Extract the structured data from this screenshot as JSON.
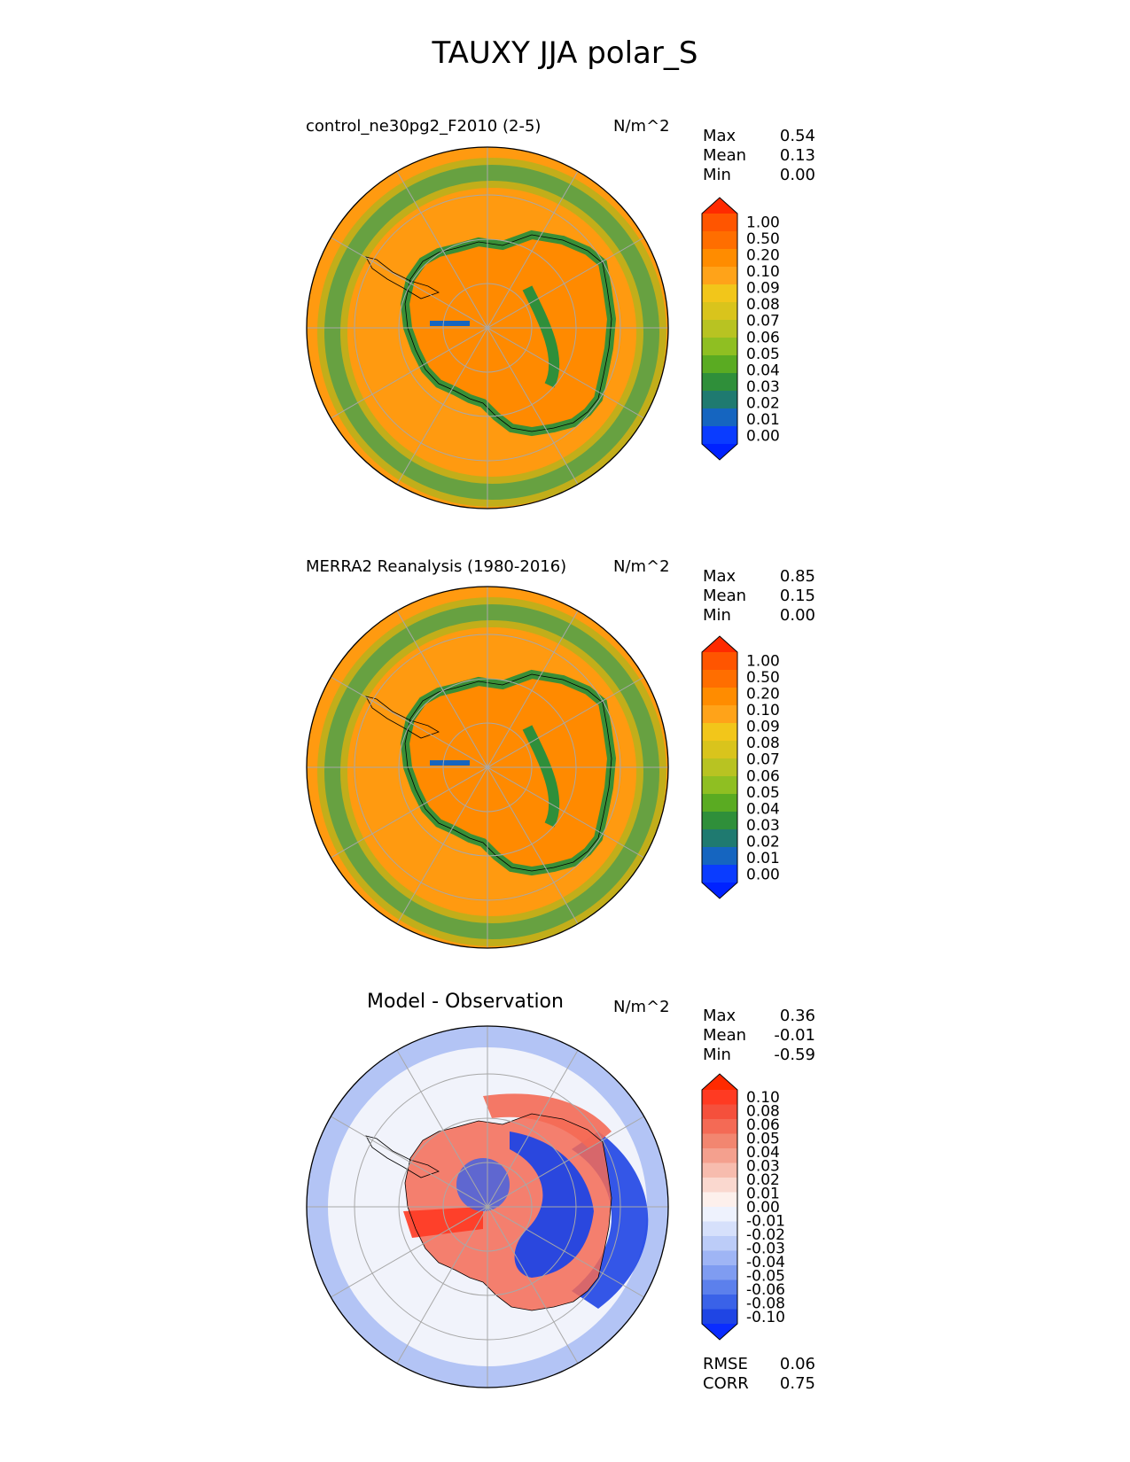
{
  "figure": {
    "title": "TAUXY JJA polar_S"
  },
  "chart_data": [
    {
      "type": "heatmap",
      "projection": "south polar stereographic",
      "title": "control_ne30pg2_F2010 (2-5)",
      "units": "N/m^2",
      "stats": [
        {
          "label": "Max",
          "value": "0.54"
        },
        {
          "label": "Mean",
          "value": "0.13"
        },
        {
          "label": "Min",
          "value": "0.00"
        }
      ],
      "colorbar": {
        "levels": [
          "1.00",
          "0.50",
          "0.20",
          "0.10",
          "0.09",
          "0.08",
          "0.07",
          "0.06",
          "0.05",
          "0.04",
          "0.03",
          "0.02",
          "0.01",
          "0.00"
        ],
        "colors": [
          "#ff2a00",
          "#ff5500",
          "#ff6e00",
          "#ff8c00",
          "#ffa319",
          "#f2c61a",
          "#d9c41c",
          "#b8c322",
          "#8fbf22",
          "#5aab22",
          "#2f8f3a",
          "#1f7a70",
          "#1565c0",
          "#0a3cff",
          "#0022ff"
        ]
      }
    },
    {
      "type": "heatmap",
      "projection": "south polar stereographic",
      "title": "MERRA2 Reanalysis (1980-2016)",
      "units": "N/m^2",
      "stats": [
        {
          "label": "Max",
          "value": "0.85"
        },
        {
          "label": "Mean",
          "value": "0.15"
        },
        {
          "label": "Min",
          "value": "0.00"
        }
      ],
      "colorbar": {
        "levels": [
          "1.00",
          "0.50",
          "0.20",
          "0.10",
          "0.09",
          "0.08",
          "0.07",
          "0.06",
          "0.05",
          "0.04",
          "0.03",
          "0.02",
          "0.01",
          "0.00"
        ],
        "colors": [
          "#ff2a00",
          "#ff5500",
          "#ff6e00",
          "#ff8c00",
          "#ffa319",
          "#f2c61a",
          "#d9c41c",
          "#b8c322",
          "#8fbf22",
          "#5aab22",
          "#2f8f3a",
          "#1f7a70",
          "#1565c0",
          "#0a3cff",
          "#0022ff"
        ]
      }
    },
    {
      "type": "heatmap",
      "projection": "south polar stereographic",
      "title": "Model - Observation",
      "units": "N/m^2",
      "stats": [
        {
          "label": "Max",
          "value": "0.36"
        },
        {
          "label": "Mean",
          "value": "-0.01"
        },
        {
          "label": "Min",
          "value": "-0.59"
        }
      ],
      "metrics": [
        {
          "label": "RMSE",
          "value": "0.06"
        },
        {
          "label": "CORR",
          "value": "0.75"
        }
      ],
      "colorbar": {
        "levels": [
          "0.10",
          "0.08",
          "0.06",
          "0.05",
          "0.04",
          "0.03",
          "0.02",
          "0.01",
          "0.00",
          "-0.01",
          "-0.02",
          "-0.03",
          "-0.04",
          "-0.05",
          "-0.06",
          "-0.08",
          "-0.10"
        ],
        "colors": [
          "#ff2a00",
          "#ff3a22",
          "#f5503c",
          "#f46a55",
          "#f28670",
          "#f4a08e",
          "#f7bcae",
          "#fad8cf",
          "#fdf0ec",
          "#eef2fd",
          "#d6e0fb",
          "#bcccf8",
          "#9fb5f5",
          "#7f9cf1",
          "#5c80ec",
          "#3a62e8",
          "#1f45e4",
          "#0a2cff"
        ]
      }
    }
  ]
}
